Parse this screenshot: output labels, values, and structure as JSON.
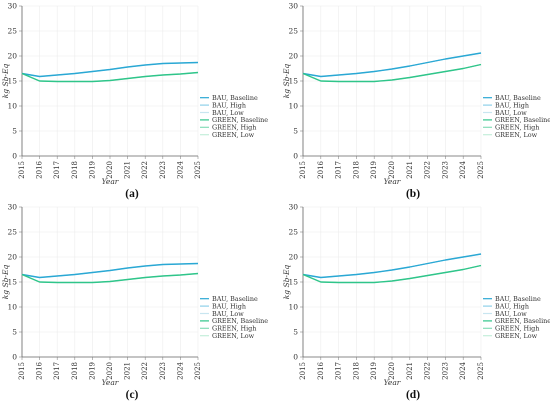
{
  "chart_data": [
    {
      "panel_label": "(a)",
      "type": "line",
      "xlabel": "Year",
      "ylabel": "kg Sb-Eq",
      "xlim": [
        2015,
        2025
      ],
      "ylim": [
        0,
        30
      ],
      "xticks": [
        "2015",
        "2016",
        "2017",
        "2018",
        "2019",
        "2020",
        "2021",
        "2022",
        "2023",
        "2024",
        "2025"
      ],
      "yticks": [
        "0",
        "5",
        "10",
        "15",
        "20",
        "25",
        "30"
      ],
      "grid": true,
      "legend_position": "right-center",
      "x": [
        2015,
        2016,
        2017,
        2018,
        2019,
        2020,
        2021,
        2022,
        2023,
        2024,
        2025
      ],
      "series": [
        {
          "name": "BAU, Baseline",
          "color": "#2aa8d4",
          "values": [
            16.5,
            15.9,
            16.2,
            16.5,
            16.9,
            17.3,
            17.8,
            18.2,
            18.5,
            18.6,
            18.7
          ]
        },
        {
          "name": "BAU, High",
          "color": "#8fd0ea",
          "values": [
            16.5,
            15.9,
            16.2,
            16.5,
            16.9,
            17.3,
            17.8,
            18.2,
            18.5,
            18.6,
            18.7
          ]
        },
        {
          "name": "BAU, Low",
          "color": "#c8e6f0",
          "values": [
            16.5,
            15.9,
            16.2,
            16.5,
            16.9,
            17.3,
            17.8,
            18.2,
            18.5,
            18.6,
            18.7
          ]
        },
        {
          "name": "GREEN, Baseline",
          "color": "#2fc58a",
          "values": [
            16.5,
            15.0,
            14.9,
            14.9,
            14.9,
            15.1,
            15.5,
            15.9,
            16.2,
            16.4,
            16.7
          ]
        },
        {
          "name": "GREEN, High",
          "color": "#86dcb8",
          "values": [
            16.5,
            15.0,
            14.9,
            14.9,
            14.9,
            15.1,
            15.5,
            15.9,
            16.2,
            16.4,
            16.7
          ]
        },
        {
          "name": "GREEN, Low",
          "color": "#c4eedb",
          "values": [
            16.5,
            15.0,
            14.9,
            14.9,
            14.9,
            15.1,
            15.5,
            15.9,
            16.2,
            16.4,
            16.7
          ]
        }
      ]
    },
    {
      "panel_label": "(b)",
      "type": "line",
      "xlabel": "Year",
      "ylabel": "kg Sb-Eq",
      "xlim": [
        2015,
        2025
      ],
      "ylim": [
        0,
        30
      ],
      "xticks": [
        "2015",
        "2016",
        "2017",
        "2018",
        "2019",
        "2020",
        "2021",
        "2022",
        "2023",
        "2024",
        "2025"
      ],
      "yticks": [
        "0",
        "5",
        "10",
        "15",
        "20",
        "25",
        "30"
      ],
      "grid": true,
      "legend_position": "right-center",
      "x": [
        2015,
        2016,
        2017,
        2018,
        2019,
        2020,
        2021,
        2022,
        2023,
        2024,
        2025
      ],
      "series": [
        {
          "name": "BAU, Baseline",
          "color": "#2aa8d4",
          "values": [
            16.5,
            15.9,
            16.2,
            16.5,
            16.9,
            17.4,
            18.0,
            18.7,
            19.4,
            20.0,
            20.6
          ]
        },
        {
          "name": "BAU, High",
          "color": "#8fd0ea",
          "values": [
            16.5,
            15.9,
            16.2,
            16.5,
            16.9,
            17.4,
            18.0,
            18.7,
            19.4,
            20.0,
            20.6
          ]
        },
        {
          "name": "BAU, Low",
          "color": "#c8e6f0",
          "values": [
            16.5,
            15.9,
            16.2,
            16.5,
            16.9,
            17.4,
            18.0,
            18.7,
            19.4,
            20.0,
            20.6
          ]
        },
        {
          "name": "GREEN, Baseline",
          "color": "#2fc58a",
          "values": [
            16.5,
            15.0,
            14.9,
            14.9,
            14.9,
            15.2,
            15.7,
            16.3,
            16.9,
            17.5,
            18.3
          ]
        },
        {
          "name": "GREEN, High",
          "color": "#86dcb8",
          "values": [
            16.5,
            15.0,
            14.9,
            14.9,
            14.9,
            15.2,
            15.7,
            16.3,
            16.9,
            17.5,
            18.3
          ]
        },
        {
          "name": "GREEN, Low",
          "color": "#c4eedb",
          "values": [
            16.5,
            15.0,
            14.9,
            14.9,
            14.9,
            15.2,
            15.7,
            16.3,
            16.9,
            17.5,
            18.3
          ]
        }
      ]
    },
    {
      "panel_label": "(c)",
      "type": "line",
      "xlabel": "Year",
      "ylabel": "kg Sb-Eq",
      "xlim": [
        2015,
        2025
      ],
      "ylim": [
        0,
        30
      ],
      "xticks": [
        "2015",
        "2016",
        "2017",
        "2018",
        "2019",
        "2020",
        "2021",
        "2022",
        "2023",
        "2024",
        "2025"
      ],
      "yticks": [
        "0",
        "5",
        "10",
        "15",
        "20",
        "25",
        "30"
      ],
      "grid": true,
      "legend_position": "right-center",
      "x": [
        2015,
        2016,
        2017,
        2018,
        2019,
        2020,
        2021,
        2022,
        2023,
        2024,
        2025
      ],
      "series": [
        {
          "name": "BAU, Baseline",
          "color": "#2aa8d4",
          "values": [
            16.5,
            15.9,
            16.2,
            16.5,
            16.9,
            17.3,
            17.8,
            18.2,
            18.5,
            18.6,
            18.7
          ]
        },
        {
          "name": "BAU, High",
          "color": "#8fd0ea",
          "values": [
            16.5,
            15.9,
            16.2,
            16.5,
            16.9,
            17.3,
            17.8,
            18.2,
            18.5,
            18.6,
            18.7
          ]
        },
        {
          "name": "BAU, Low",
          "color": "#c8e6f0",
          "values": [
            16.5,
            15.9,
            16.2,
            16.5,
            16.9,
            17.3,
            17.8,
            18.2,
            18.5,
            18.6,
            18.7
          ]
        },
        {
          "name": "GREEN, Baseline",
          "color": "#2fc58a",
          "values": [
            16.5,
            15.0,
            14.9,
            14.9,
            14.9,
            15.1,
            15.5,
            15.9,
            16.2,
            16.4,
            16.7
          ]
        },
        {
          "name": "GREEN, High",
          "color": "#86dcb8",
          "values": [
            16.5,
            15.0,
            14.9,
            14.9,
            14.9,
            15.1,
            15.5,
            15.9,
            16.2,
            16.4,
            16.7
          ]
        },
        {
          "name": "GREEN, Low",
          "color": "#c4eedb",
          "values": [
            16.5,
            15.0,
            14.9,
            14.9,
            14.9,
            15.1,
            15.5,
            15.9,
            16.2,
            16.4,
            16.7
          ]
        }
      ]
    },
    {
      "panel_label": "(d)",
      "type": "line",
      "xlabel": "Year",
      "ylabel": "kg Sb-Eq",
      "xlim": [
        2015,
        2025
      ],
      "ylim": [
        0,
        30
      ],
      "xticks": [
        "2015",
        "2016",
        "2017",
        "2018",
        "2019",
        "2020",
        "2021",
        "2022",
        "2023",
        "2024",
        "2025"
      ],
      "yticks": [
        "0",
        "5",
        "10",
        "15",
        "20",
        "25",
        "30"
      ],
      "grid": true,
      "legend_position": "right-center",
      "x": [
        2015,
        2016,
        2017,
        2018,
        2019,
        2020,
        2021,
        2022,
        2023,
        2024,
        2025
      ],
      "series": [
        {
          "name": "BAU, Baseline",
          "color": "#2aa8d4",
          "values": [
            16.5,
            15.9,
            16.2,
            16.5,
            16.9,
            17.4,
            18.0,
            18.7,
            19.4,
            20.0,
            20.6
          ]
        },
        {
          "name": "BAU, High",
          "color": "#8fd0ea",
          "values": [
            16.5,
            15.9,
            16.2,
            16.5,
            16.9,
            17.4,
            18.0,
            18.7,
            19.4,
            20.0,
            20.6
          ]
        },
        {
          "name": "BAU, Low",
          "color": "#c8e6f0",
          "values": [
            16.5,
            15.9,
            16.2,
            16.5,
            16.9,
            17.4,
            18.0,
            18.7,
            19.4,
            20.0,
            20.6
          ]
        },
        {
          "name": "GREEN, Baseline",
          "color": "#2fc58a",
          "values": [
            16.5,
            15.0,
            14.9,
            14.9,
            14.9,
            15.2,
            15.7,
            16.3,
            16.9,
            17.5,
            18.3
          ]
        },
        {
          "name": "GREEN, High",
          "color": "#86dcb8",
          "values": [
            16.5,
            15.0,
            14.9,
            14.9,
            14.9,
            15.2,
            15.7,
            16.3,
            16.9,
            17.5,
            18.3
          ]
        },
        {
          "name": "GREEN, Low",
          "color": "#c4eedb",
          "values": [
            16.5,
            15.0,
            14.9,
            14.9,
            14.9,
            15.2,
            15.7,
            16.3,
            16.9,
            17.5,
            18.3
          ]
        }
      ]
    }
  ]
}
